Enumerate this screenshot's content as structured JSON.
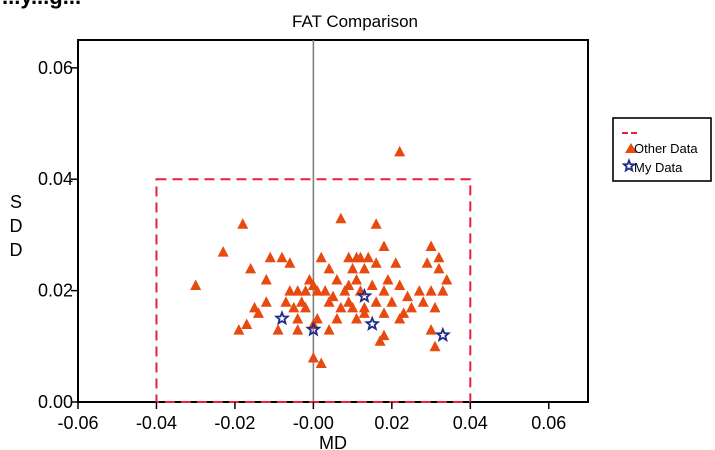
{
  "header": {
    "partial_title": "...y...g..."
  },
  "colors": {
    "other": "#e8490f",
    "mine": "#1f2d8a",
    "limit_box": "#e8213a",
    "zero_line": "#808080"
  },
  "chart_data": {
    "type": "scatter",
    "title": "FAT Comparison",
    "xlabel": "MD",
    "ylabel": "SDD",
    "xlim": [
      -0.06,
      0.07
    ],
    "ylim": [
      0.0,
      0.065
    ],
    "xticks": [
      -0.06,
      -0.04,
      -0.02,
      -0.0,
      0.02,
      0.04,
      0.06
    ],
    "xtick_labels": [
      "-0.06",
      "-0.04",
      "-0.02",
      "-0.00",
      "0.02",
      "0.04",
      "0.06"
    ],
    "yticks": [
      0.0,
      0.02,
      0.04,
      0.06
    ],
    "ytick_labels": [
      "0.00",
      "0.02",
      "0.04",
      "0.06"
    ],
    "grid": false,
    "legend_position": "right",
    "reference_line_x": 0.0,
    "limit_box": {
      "x": [
        -0.04,
        0.04
      ],
      "y": [
        0.0,
        0.04
      ]
    },
    "series": [
      {
        "name": "Other Data",
        "marker": "triangle",
        "points": [
          [
            0.022,
            0.045
          ],
          [
            -0.018,
            0.032
          ],
          [
            0.007,
            0.033
          ],
          [
            0.016,
            0.032
          ],
          [
            -0.03,
            0.021
          ],
          [
            -0.023,
            0.027
          ],
          [
            -0.016,
            0.024
          ],
          [
            -0.012,
            0.022
          ],
          [
            -0.008,
            0.026
          ],
          [
            -0.006,
            0.025
          ],
          [
            -0.011,
            0.026
          ],
          [
            0.002,
            0.026
          ],
          [
            0.009,
            0.026
          ],
          [
            0.011,
            0.026
          ],
          [
            0.012,
            0.026
          ],
          [
            0.014,
            0.026
          ],
          [
            0.018,
            0.028
          ],
          [
            0.03,
            0.028
          ],
          [
            0.032,
            0.026
          ],
          [
            0.032,
            0.024
          ],
          [
            0.034,
            0.022
          ],
          [
            0.029,
            0.025
          ],
          [
            0.021,
            0.025
          ],
          [
            0.004,
            0.024
          ],
          [
            0.01,
            0.024
          ],
          [
            0.013,
            0.024
          ],
          [
            0.016,
            0.025
          ],
          [
            -0.001,
            0.022
          ],
          [
            0.0,
            0.021
          ],
          [
            0.001,
            0.02
          ],
          [
            0.006,
            0.022
          ],
          [
            0.009,
            0.021
          ],
          [
            0.011,
            0.022
          ],
          [
            0.015,
            0.021
          ],
          [
            0.019,
            0.022
          ],
          [
            0.022,
            0.021
          ],
          [
            0.027,
            0.02
          ],
          [
            0.03,
            0.02
          ],
          [
            0.033,
            0.02
          ],
          [
            -0.006,
            0.02
          ],
          [
            -0.004,
            0.02
          ],
          [
            -0.002,
            0.02
          ],
          [
            0.003,
            0.02
          ],
          [
            0.005,
            0.019
          ],
          [
            0.008,
            0.02
          ],
          [
            0.012,
            0.02
          ],
          [
            0.018,
            0.02
          ],
          [
            0.024,
            0.019
          ],
          [
            0.028,
            0.018
          ],
          [
            -0.007,
            0.018
          ],
          [
            -0.012,
            0.018
          ],
          [
            -0.015,
            0.017
          ],
          [
            -0.003,
            0.018
          ],
          [
            0.004,
            0.018
          ],
          [
            0.009,
            0.018
          ],
          [
            0.013,
            0.017
          ],
          [
            0.016,
            0.018
          ],
          [
            0.02,
            0.018
          ],
          [
            0.025,
            0.017
          ],
          [
            0.031,
            0.017
          ],
          [
            -0.014,
            0.016
          ],
          [
            -0.019,
            0.013
          ],
          [
            -0.017,
            0.014
          ],
          [
            -0.009,
            0.013
          ],
          [
            -0.004,
            0.015
          ],
          [
            -0.002,
            0.017
          ],
          [
            0.001,
            0.015
          ],
          [
            0.006,
            0.015
          ],
          [
            0.011,
            0.015
          ],
          [
            0.013,
            0.016
          ],
          [
            0.018,
            0.016
          ],
          [
            0.022,
            0.015
          ],
          [
            0.03,
            0.013
          ],
          [
            -0.004,
            0.013
          ],
          [
            0.0,
            0.014
          ],
          [
            0.004,
            0.013
          ],
          [
            0.007,
            0.017
          ],
          [
            0.01,
            0.017
          ],
          [
            0.017,
            0.011
          ],
          [
            0.018,
            0.012
          ],
          [
            0.031,
            0.01
          ],
          [
            0.0,
            0.008
          ],
          [
            0.002,
            0.007
          ],
          [
            0.023,
            0.016
          ],
          [
            -0.005,
            0.017
          ]
        ]
      },
      {
        "name": "My Data",
        "marker": "star",
        "points": [
          [
            -0.008,
            0.015
          ],
          [
            0.0,
            0.013
          ],
          [
            0.013,
            0.019
          ],
          [
            0.015,
            0.014
          ],
          [
            0.033,
            0.012
          ]
        ]
      }
    ],
    "legend": [
      {
        "label": "",
        "kind": "dashed-line"
      },
      {
        "label": "Other Data",
        "kind": "triangle"
      },
      {
        "label": "My Data",
        "kind": "star"
      }
    ]
  }
}
